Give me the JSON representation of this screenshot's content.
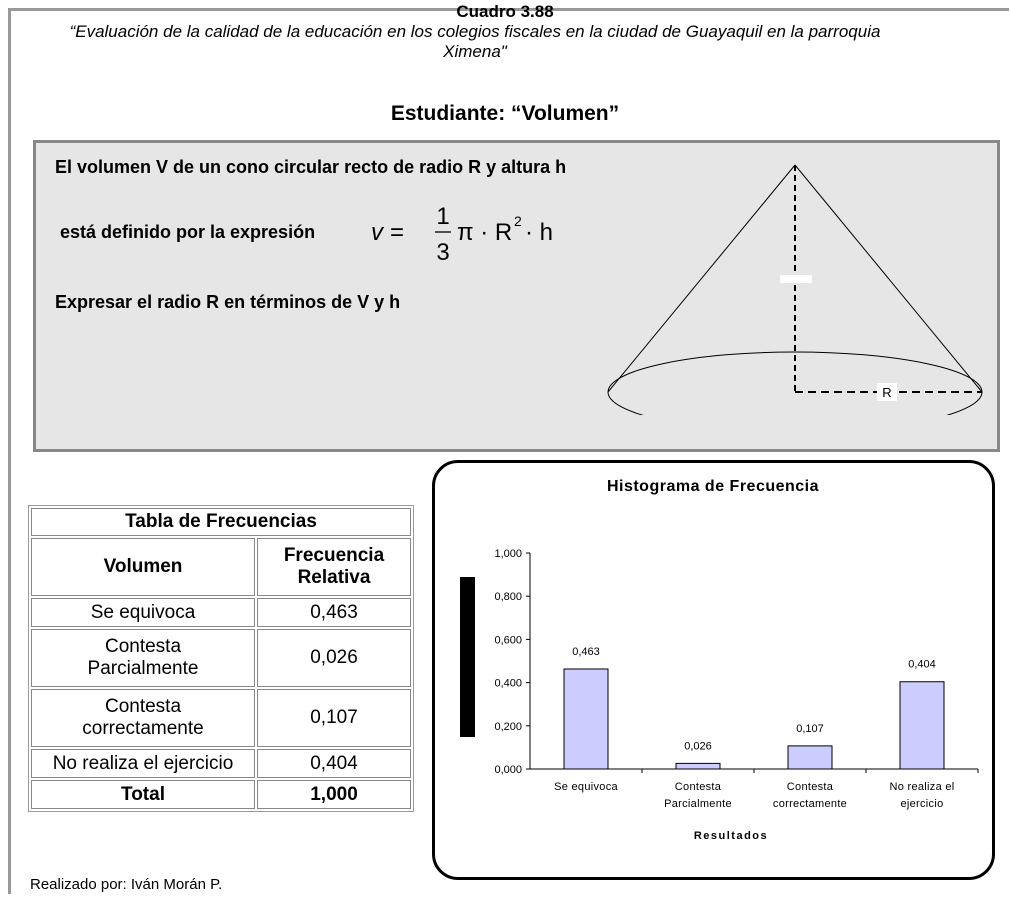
{
  "header": {
    "number": "Cuadro 3.88",
    "subtitle": "“Evaluación de la calidad de la educación en los colegios fiscales en la ciudad de Guayaquil en la parroquia Ximena\"",
    "topic": "Estudiante: “Volumen”"
  },
  "problem": {
    "line1": "El volumen V de un cono circular recto de radio R y altura h",
    "line2": "está definido por la expresión",
    "formula": {
      "lhs": "v =",
      "num": "1",
      "den": "3",
      "mid": "π · R",
      "exp": "2",
      "tail": "· h"
    },
    "line3": "Expresar el radio R en términos de V y h",
    "radius_label": "R"
  },
  "table": {
    "title": "Tabla de Frecuencias",
    "headers": [
      "Volumen",
      "Frecuencia Relativa"
    ],
    "rows": [
      [
        "Se equivoca",
        "0,463"
      ],
      [
        "Contesta Parcialmente",
        "0,026"
      ],
      [
        "Contesta correctamente",
        "0,107"
      ],
      [
        "No realiza el ejercicio",
        "0,404"
      ]
    ],
    "total": [
      "Total",
      "1,000"
    ]
  },
  "chart_data": {
    "type": "bar",
    "title": "Histograma de Frecuencia",
    "xlabel": "Resultados",
    "categories": [
      "Se equivoca",
      "Contesta Parcialmente",
      "Contesta correctamente",
      "No realiza el ejercicio"
    ],
    "values": [
      0.463,
      0.026,
      0.107,
      0.404
    ],
    "value_labels": [
      "0,463",
      "0,026",
      "0,107",
      "0,404"
    ],
    "color": "#ccccff",
    "ylim": [
      0,
      1
    ],
    "yticks": [
      {
        "value": 0,
        "label": "0,000"
      },
      {
        "value": 0.2,
        "label": "0,200"
      },
      {
        "value": 0.4,
        "label": "0,400"
      },
      {
        "value": 0.6,
        "label": "0,600"
      },
      {
        "value": 0.8,
        "label": "0,800"
      },
      {
        "value": 1,
        "label": "1,000"
      }
    ]
  },
  "footer": "Realizado por: Iván Morán P."
}
